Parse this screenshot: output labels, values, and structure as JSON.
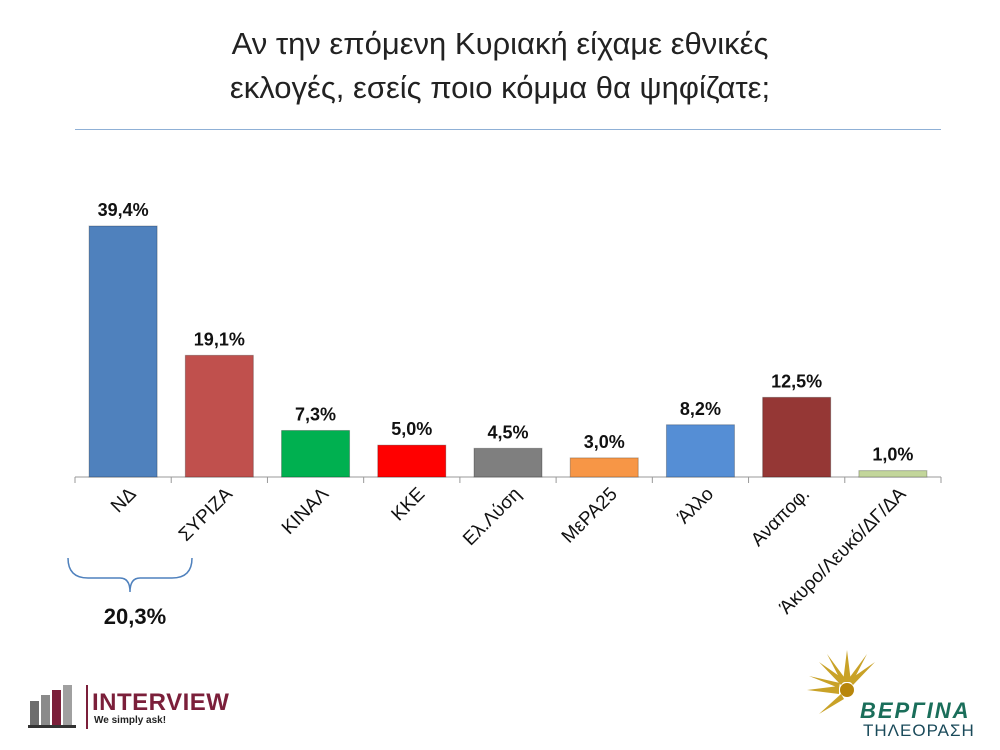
{
  "title_line1": "Αν την επόμενη Κυριακή είχαμε εθνικές",
  "title_line2": "εκλογές, εσείς ποιο κόμμα θα ψηφίζατε;",
  "chart_data": {
    "type": "bar",
    "categories": [
      "ΝΔ",
      "ΣΥΡΙΖΑ",
      "ΚΙΝΑΛ",
      "ΚΚΕ",
      "Ελ.Λύση",
      "ΜεΡΑ25",
      "Άλλο",
      "Αναποφ.",
      "Άκυρο/Λευκό/ΔΓ/ΔΑ"
    ],
    "values": [
      39.4,
      19.1,
      7.3,
      5.0,
      4.5,
      3.0,
      8.2,
      12.5,
      1.0
    ],
    "labels": [
      "39,4%",
      "19,1%",
      "7,3%",
      "5,0%",
      "4,5%",
      "3,0%",
      "8,2%",
      "12,5%",
      "1,0%"
    ],
    "colors": [
      "#4f81bd",
      "#c0504d",
      "#00b050",
      "#ff0000",
      "#7f7f7f",
      "#f79646",
      "#558ed5",
      "#953735",
      "#c3d69b"
    ],
    "ylim": [
      0,
      39.4
    ],
    "grid": false,
    "annotation": {
      "text": "20,3%",
      "spans": [
        "ΝΔ",
        "ΣΥΡΙΖΑ"
      ]
    }
  },
  "logos": {
    "interview_name": "INTERVIEW",
    "interview_tagline": "We simply ask!",
    "vergina_name": "ΒΕΡΓΙΝΑ",
    "vergina_sub": "ΤΗΛΕΟΡΑΣΗ",
    "interview_color": "#7b1f3a",
    "vergina_color": "#1a6e5a"
  }
}
